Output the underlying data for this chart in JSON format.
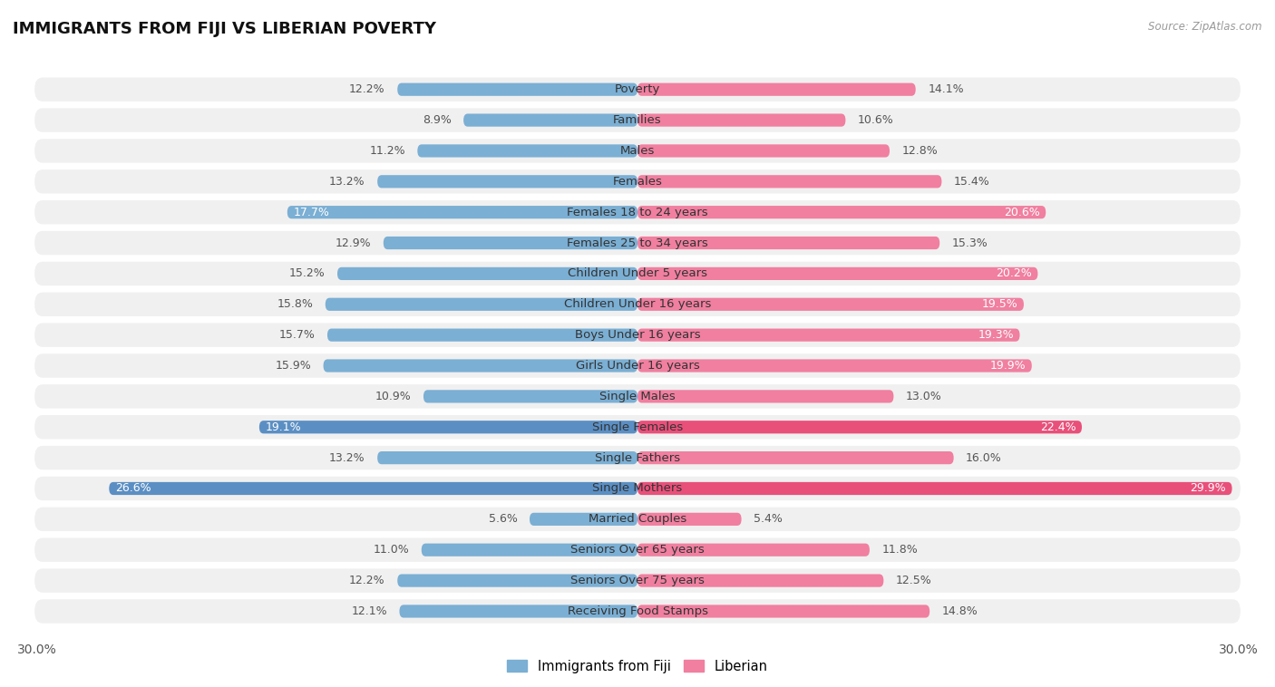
{
  "title": "IMMIGRANTS FROM FIJI VS LIBERIAN POVERTY",
  "source": "Source: ZipAtlas.com",
  "categories": [
    "Poverty",
    "Families",
    "Males",
    "Females",
    "Females 18 to 24 years",
    "Females 25 to 34 years",
    "Children Under 5 years",
    "Children Under 16 years",
    "Boys Under 16 years",
    "Girls Under 16 years",
    "Single Males",
    "Single Females",
    "Single Fathers",
    "Single Mothers",
    "Married Couples",
    "Seniors Over 65 years",
    "Seniors Over 75 years",
    "Receiving Food Stamps"
  ],
  "fiji_values": [
    12.2,
    8.9,
    11.2,
    13.2,
    17.7,
    12.9,
    15.2,
    15.8,
    15.7,
    15.9,
    10.9,
    19.1,
    13.2,
    26.6,
    5.6,
    11.0,
    12.2,
    12.1
  ],
  "liberian_values": [
    14.1,
    10.6,
    12.8,
    15.4,
    20.6,
    15.3,
    20.2,
    19.5,
    19.3,
    19.9,
    13.0,
    22.4,
    16.0,
    29.9,
    5.4,
    11.8,
    12.5,
    14.8
  ],
  "fiji_color": "#7BAFD4",
  "liberian_color": "#F07FA0",
  "fiji_highlight_color": "#5B8FC4",
  "liberian_highlight_color": "#E8507A",
  "background_color": "#ffffff",
  "row_color": "#f0f0f0",
  "max_value": 30.0,
  "label_fontsize": 9.5,
  "value_fontsize": 9.0,
  "title_fontsize": 13,
  "legend_fiji": "Immigrants from Fiji",
  "legend_liberian": "Liberian",
  "fiji_label_threshold": 17.0,
  "liberian_label_threshold": 19.0
}
